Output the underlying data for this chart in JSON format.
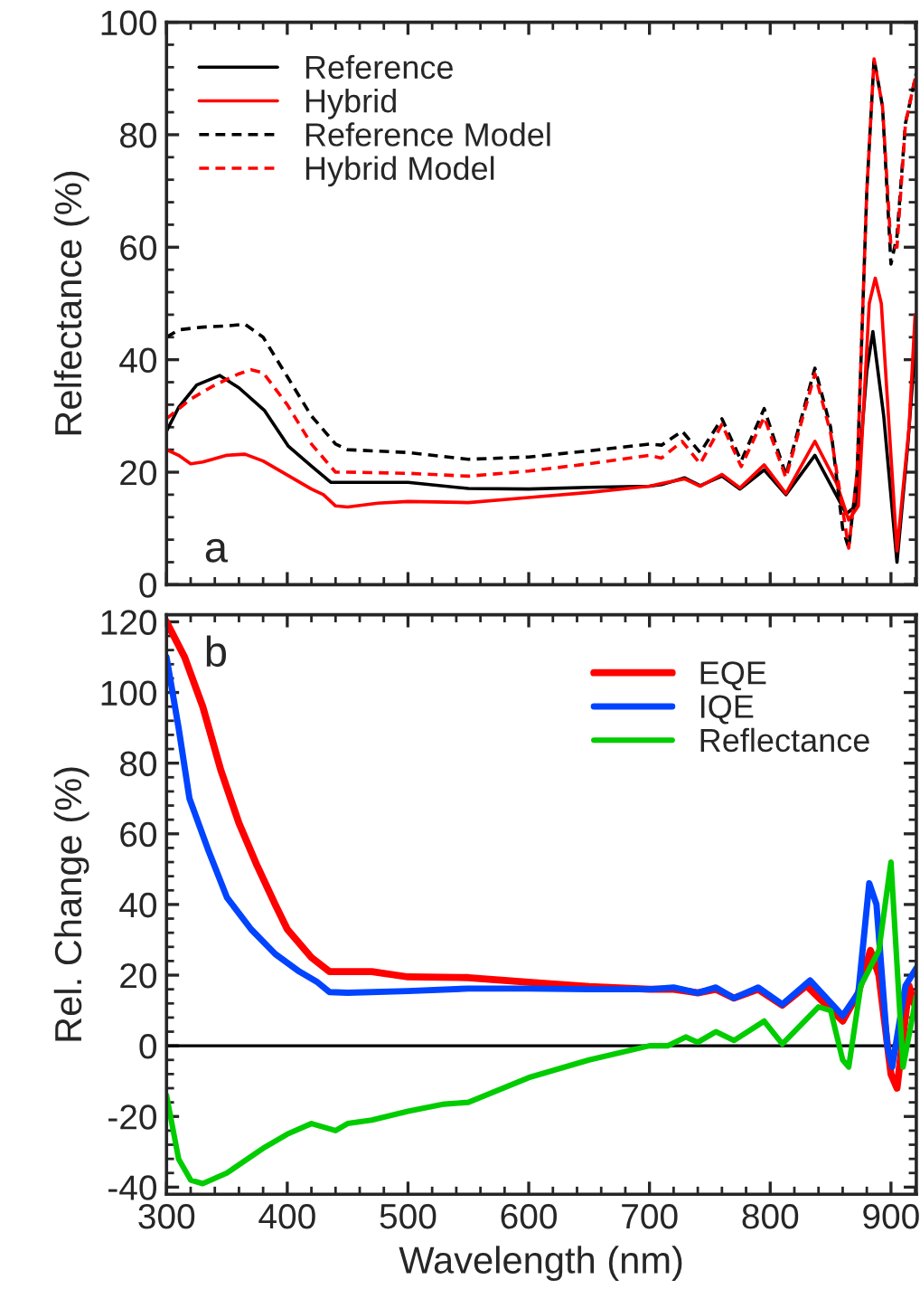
{
  "chart_data": [
    {
      "type": "line",
      "ylabel": "Relfectance (%)",
      "xlim": [
        300,
        921
      ],
      "xticks": [
        300,
        400,
        500,
        600,
        700,
        800,
        900
      ],
      "ylim": [
        0,
        100
      ],
      "yticks": [
        0,
        20,
        40,
        60,
        80,
        100
      ],
      "tick_labels": "y",
      "legend": "top left",
      "grid": false,
      "annotations": [
        "a"
      ],
      "series": [
        {
          "name": "Reference",
          "color": "#000000",
          "line_style": "solid",
          "x": [
            300,
            310,
            325,
            344,
            360,
            381,
            401,
            421,
            436,
            450,
            500,
            550,
            600,
            650,
            700,
            710,
            729,
            742,
            760,
            775,
            795,
            813,
            837,
            852,
            863,
            871,
            880,
            885,
            894,
            905,
            914,
            921
          ],
          "values": [
            27.3,
            31.5,
            35.5,
            37.2,
            35,
            31,
            24.6,
            20.9,
            18.2,
            18.2,
            18.2,
            17.1,
            17,
            17.3,
            17.5,
            17.8,
            19,
            17.6,
            19.3,
            17,
            20.4,
            16,
            23,
            17,
            12.6,
            14,
            38,
            45,
            30,
            4,
            25,
            45
          ]
        },
        {
          "name": "Hybrid",
          "color": "#ff0000",
          "line_style": "solid",
          "x": [
            300,
            310,
            320,
            330,
            350,
            365,
            380,
            400,
            420,
            430,
            440,
            450,
            475,
            500,
            550,
            600,
            650,
            700,
            710,
            729,
            742,
            760,
            775,
            795,
            813,
            837,
            855,
            865,
            873,
            882,
            887,
            892,
            905,
            915,
            920
          ],
          "values": [
            24,
            23,
            21.5,
            21.8,
            23,
            23.2,
            22,
            19.5,
            17,
            16,
            14,
            13.8,
            14.5,
            14.8,
            14.6,
            15.5,
            16.4,
            17.5,
            18,
            18.8,
            17.5,
            19.6,
            17.2,
            21.3,
            16.2,
            25.5,
            18,
            11.5,
            14,
            50,
            54.5,
            50,
            6,
            28,
            48
          ]
        },
        {
          "name": "Reference Model",
          "color": "#000000",
          "line_style": "dashed",
          "x": [
            300,
            310,
            330,
            350,
            365,
            380,
            400,
            420,
            440,
            450,
            500,
            550,
            600,
            650,
            700,
            710,
            727,
            742,
            760,
            776,
            795,
            813,
            837,
            850,
            860,
            865,
            872,
            880,
            886,
            893,
            900,
            905,
            912,
            921
          ],
          "values": [
            44,
            45.3,
            45.8,
            46,
            46.3,
            44,
            37,
            30,
            25,
            24,
            23.5,
            22.3,
            22.7,
            23.8,
            25,
            24.8,
            27.3,
            23.5,
            29.5,
            22,
            31.3,
            19.5,
            38.5,
            28,
            10,
            6.5,
            20,
            70,
            93.5,
            85,
            57,
            62,
            82,
            91
          ]
        },
        {
          "name": "Hybrid Model",
          "color": "#ff0000",
          "line_style": "dashed",
          "x": [
            300,
            320,
            340,
            360,
            370,
            380,
            400,
            420,
            440,
            450,
            500,
            550,
            600,
            650,
            700,
            710,
            727,
            742,
            760,
            776,
            795,
            813,
            837,
            850,
            865,
            872,
            880,
            886,
            893,
            900,
            905,
            912,
            921
          ],
          "values": [
            29.5,
            33,
            35.5,
            37.5,
            38.2,
            37.7,
            32,
            25,
            20,
            20,
            19.8,
            19.3,
            20.2,
            21.5,
            23,
            22.5,
            25.5,
            21.5,
            28.5,
            21,
            29.8,
            19,
            37.5,
            27,
            6.5,
            20,
            70,
            93.5,
            85,
            60,
            60,
            82,
            91
          ]
        }
      ]
    },
    {
      "type": "line",
      "xlabel": "Wavelength (nm)",
      "ylabel": "Rel. Change (%)",
      "xlim": [
        300,
        921
      ],
      "xticks": [
        300,
        400,
        500,
        600,
        700,
        800,
        900
      ],
      "ylim": [
        -42,
        122
      ],
      "yticks": [
        -40,
        -20,
        0,
        20,
        40,
        60,
        80,
        100,
        120
      ],
      "legend": "top right",
      "grid": false,
      "annotations": [
        "b"
      ],
      "ref_lines": [
        {
          "axis": "y",
          "value": 0,
          "color": "#000000"
        }
      ],
      "series": [
        {
          "name": "EQE",
          "color": "#ff0000",
          "line_style": "solid",
          "x": [
            300,
            315,
            330,
            345,
            360,
            375,
            390,
            400,
            420,
            435,
            450,
            470,
            500,
            550,
            600,
            650,
            700,
            720,
            740,
            755,
            770,
            790,
            810,
            830,
            860,
            873,
            883,
            890,
            900,
            905,
            915,
            921
          ],
          "values": [
            120,
            110,
            96,
            78,
            63,
            51,
            40,
            33,
            25,
            21,
            21,
            21,
            19.5,
            19.3,
            18,
            16.8,
            16,
            16,
            15,
            16,
            13.5,
            16,
            11.5,
            17,
            7,
            15,
            27,
            20,
            -8,
            -12,
            17,
            10
          ]
        },
        {
          "name": "IQE",
          "color": "#0044ff",
          "line_style": "solid",
          "x": [
            300,
            310,
            319,
            335,
            350,
            370,
            390,
            410,
            425,
            435,
            450,
            500,
            550,
            600,
            650,
            700,
            720,
            740,
            755,
            770,
            790,
            810,
            833,
            860,
            873,
            882,
            888,
            897,
            901,
            912,
            921
          ],
          "values": [
            110,
            90,
            70,
            55,
            42,
            33,
            26,
            21,
            18,
            15.2,
            15,
            15.5,
            16.2,
            16.2,
            16,
            16,
            16.5,
            15,
            16.5,
            13.5,
            16.5,
            11.7,
            18.5,
            8.5,
            15,
            46,
            40,
            0,
            -6,
            17,
            22
          ]
        },
        {
          "name": "Reflectance",
          "color": "#00cc00",
          "line_style": "solid",
          "x": [
            300,
            310,
            320,
            330,
            350,
            380,
            400,
            420,
            440,
            450,
            470,
            500,
            530,
            550,
            600,
            650,
            700,
            715,
            730,
            740,
            755,
            770,
            795,
            810,
            840,
            850,
            860,
            865,
            875,
            890,
            900,
            910,
            921
          ],
          "values": [
            -14,
            -32,
            -38,
            -39,
            -36,
            -29,
            -25,
            -22,
            -24,
            -22,
            -21,
            -18.5,
            -16.5,
            -16,
            -9,
            -4,
            0,
            0,
            2.5,
            1,
            4,
            1.5,
            7,
            0.5,
            11,
            10,
            -4,
            -6,
            17,
            27,
            52,
            -6,
            14
          ]
        }
      ]
    }
  ]
}
